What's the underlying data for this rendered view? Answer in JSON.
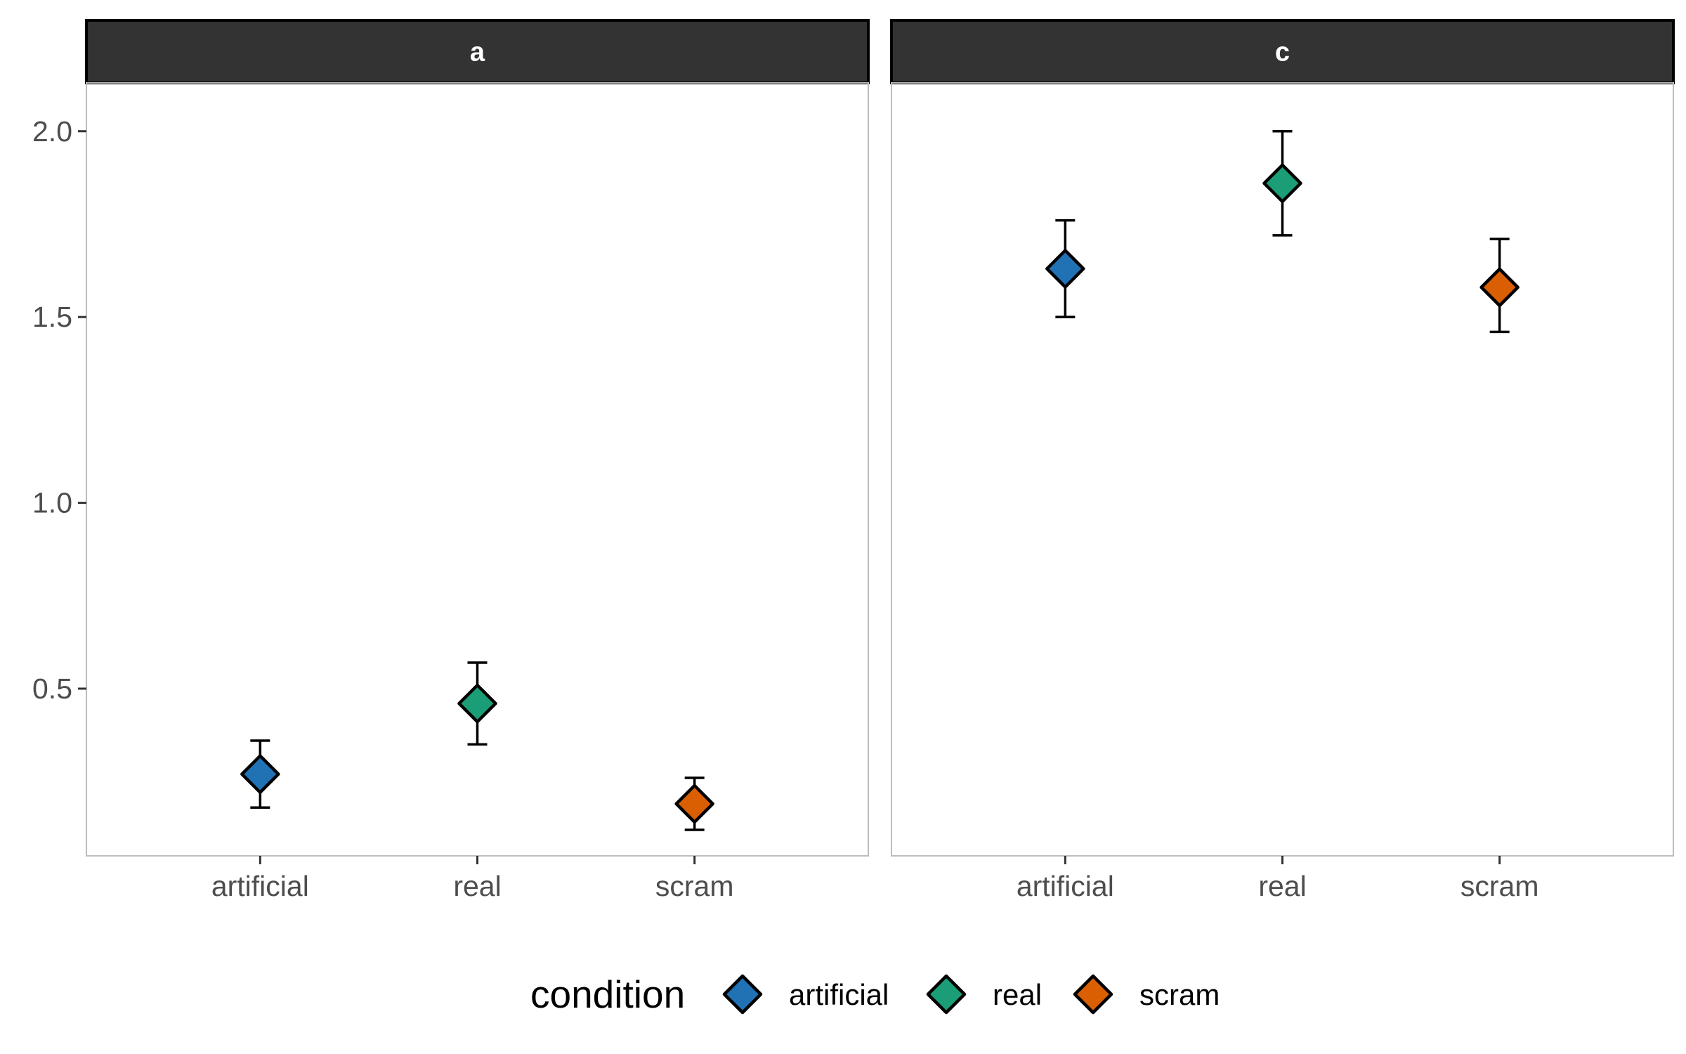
{
  "chart_data": {
    "type": "scatter",
    "y_axis": {
      "range": [
        0.05,
        2.13
      ],
      "ticks": [
        0.5,
        1.0,
        1.5,
        2.0
      ],
      "tick_labels": [
        "0.5",
        "1.0",
        "1.5",
        "2.0"
      ]
    },
    "categories": [
      "artificial",
      "real",
      "scram"
    ],
    "panels": [
      {
        "label": "a",
        "points": [
          {
            "condition": "artificial",
            "y": 0.27,
            "ymin": 0.18,
            "ymax": 0.36
          },
          {
            "condition": "real",
            "y": 0.46,
            "ymin": 0.35,
            "ymax": 0.57
          },
          {
            "condition": "scram",
            "y": 0.19,
            "ymin": 0.12,
            "ymax": 0.26
          }
        ]
      },
      {
        "label": "c",
        "points": [
          {
            "condition": "artificial",
            "y": 1.63,
            "ymin": 1.5,
            "ymax": 1.76
          },
          {
            "condition": "real",
            "y": 1.86,
            "ymin": 1.72,
            "ymax": 2.0
          },
          {
            "condition": "scram",
            "y": 1.58,
            "ymin": 1.46,
            "ymax": 1.71
          }
        ]
      }
    ],
    "legend": {
      "title": "condition",
      "position": "bottom",
      "items": [
        {
          "label": "artificial",
          "color": "#2171b5"
        },
        {
          "label": "real",
          "color": "#1b9e77"
        },
        {
          "label": "scram",
          "color": "#d95f02"
        }
      ]
    },
    "grid": false,
    "marker": "diamond-with-errorbars"
  }
}
